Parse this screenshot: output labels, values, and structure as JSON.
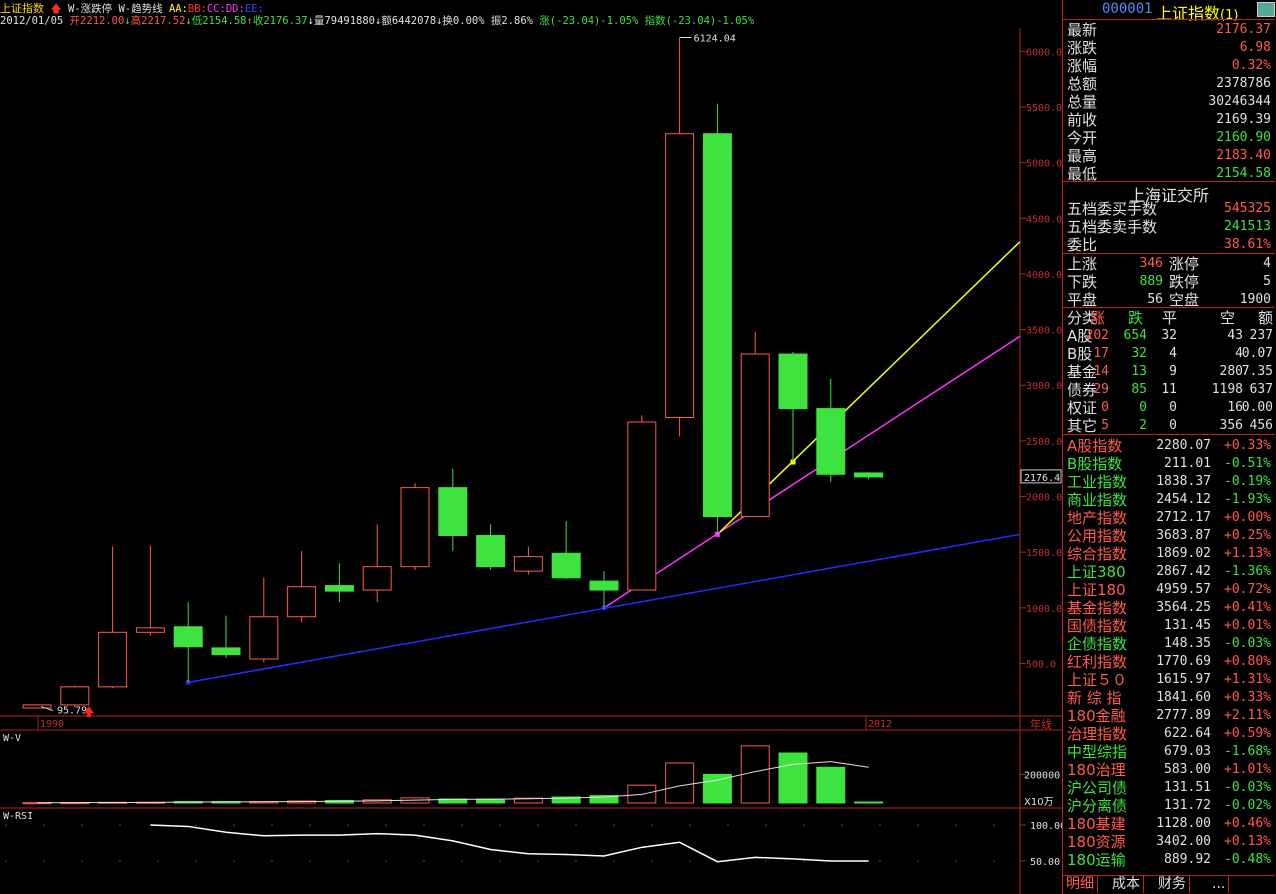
{
  "colors": {
    "up": "#ff5a4f",
    "down": "#3fe33f",
    "white": "#e0e0e0",
    "yellow": "#ffff00",
    "magenta": "#ff33ff",
    "blue": "#2a2aff",
    "axis": "#b22222",
    "label": "#c03030"
  },
  "toolbar": {
    "index_name": "上证指数",
    "ind1": "W-涨跌停",
    "ind2": "W-趋势线",
    "aa": "AA:",
    "bb": "BB:",
    "cc": "CC:",
    "dd": "DD:",
    "ee": "EE:"
  },
  "info": {
    "date": "2012/01/05",
    "open": "开2212.00",
    "high": "高2217.52",
    "low": "低2154.58",
    "close": "收2176.37",
    "vol": "量79491880",
    "amount": "额6442078",
    "turnover": "换0.00%",
    "amplitude": "振2.86%",
    "change": "涨(-23.04)-1.05%",
    "index_chg": "指数(-23.04)-1.05%"
  },
  "chart_data": {
    "type": "candlestick",
    "period": "年线",
    "x_start_label": "1990",
    "x_end_label": "2012",
    "y_ticks": [
      "6000.0",
      "5500.0",
      "5000.0",
      "4500.0",
      "4000.0",
      "3500.0",
      "3000.0",
      "2500.0",
      "2000.0",
      "1500.0",
      "1000.0",
      "500.0"
    ],
    "current_price_label": "2176.4",
    "max_label": "6124.04",
    "min_label": "95.79",
    "candles": [
      {
        "o": 100,
        "h": 128,
        "l": 95,
        "c": 128
      },
      {
        "o": 128,
        "h": 300,
        "l": 110,
        "c": 290
      },
      {
        "o": 290,
        "h": 1550,
        "l": 280,
        "c": 780
      },
      {
        "o": 780,
        "h": 1560,
        "l": 750,
        "c": 820
      },
      {
        "o": 830,
        "h": 1050,
        "l": 330,
        "c": 650
      },
      {
        "o": 640,
        "h": 930,
        "l": 550,
        "c": 580
      },
      {
        "o": 540,
        "h": 1270,
        "l": 510,
        "c": 920
      },
      {
        "o": 920,
        "h": 1510,
        "l": 870,
        "c": 1190
      },
      {
        "o": 1200,
        "h": 1400,
        "l": 1050,
        "c": 1150
      },
      {
        "o": 1160,
        "h": 1750,
        "l": 1050,
        "c": 1370
      },
      {
        "o": 1370,
        "h": 2120,
        "l": 1340,
        "c": 2080
      },
      {
        "o": 2080,
        "h": 2250,
        "l": 1510,
        "c": 1650
      },
      {
        "o": 1650,
        "h": 1750,
        "l": 1340,
        "c": 1370
      },
      {
        "o": 1330,
        "h": 1550,
        "l": 1300,
        "c": 1460
      },
      {
        "o": 1490,
        "h": 1780,
        "l": 1260,
        "c": 1270
      },
      {
        "o": 1240,
        "h": 1330,
        "l": 990,
        "c": 1160
      },
      {
        "o": 1160,
        "h": 2730,
        "l": 1160,
        "c": 2670
      },
      {
        "o": 2710,
        "h": 6124,
        "l": 2540,
        "c": 5260
      },
      {
        "o": 5260,
        "h": 5530,
        "l": 1660,
        "c": 1820
      },
      {
        "o": 1820,
        "h": 3480,
        "l": 1820,
        "c": 3280
      },
      {
        "o": 3280,
        "h": 3300,
        "l": 2310,
        "c": 2790
      },
      {
        "o": 2790,
        "h": 3060,
        "l": 2130,
        "c": 2200
      },
      {
        "o": 2212,
        "h": 2218,
        "l": 2155,
        "c": 2176
      }
    ],
    "volume_label": "W-V",
    "volume_tick": "200000",
    "volume_unit": "X10万",
    "volume": [
      2000,
      2500,
      5000,
      5000,
      10000,
      10000,
      10000,
      14000,
      18000,
      22000,
      36000,
      28000,
      28000,
      34000,
      42000,
      52000,
      125000,
      280000,
      200000,
      400000,
      350000,
      250000,
      7000
    ],
    "rsi_label": "W-RSI",
    "rsi_ticks": [
      "100.00",
      "50.00"
    ],
    "rsi": [
      null,
      null,
      null,
      100,
      98,
      90,
      85,
      86,
      86,
      88,
      86,
      78,
      66,
      60,
      59,
      57,
      69,
      76,
      49,
      55,
      53,
      50,
      50
    ]
  },
  "quote": {
    "code": "000001",
    "name": "上证指数",
    "suffix": "(1)",
    "rows": [
      {
        "label": "最新",
        "value": "2176.37",
        "color": "up"
      },
      {
        "label": "涨跌",
        "value": "6.98",
        "color": "up"
      },
      {
        "label": "涨幅",
        "value": "0.32%",
        "color": "up"
      },
      {
        "label": "总额",
        "value": "2378786",
        "color": "white"
      },
      {
        "label": "总量",
        "value": "30246344",
        "color": "white"
      },
      {
        "label": "前收",
        "value": "2169.39",
        "color": "white"
      },
      {
        "label": "今开",
        "value": "2160.90",
        "color": "down"
      },
      {
        "label": "最高",
        "value": "2183.40",
        "color": "up"
      },
      {
        "label": "最低",
        "value": "2154.58",
        "color": "down"
      }
    ],
    "exchange": "上海证交所",
    "order_rows": [
      {
        "label": "五档委买手数",
        "value": "545325",
        "color": "up"
      },
      {
        "label": "五档委卖手数",
        "value": "241513",
        "color": "down"
      },
      {
        "label": "委比",
        "value": "38.61%",
        "color": "up"
      }
    ],
    "breadth": [
      {
        "l1": "上涨",
        "v1": "346",
        "c1": "up",
        "l2": "涨停",
        "v2": "4",
        "c2": "white"
      },
      {
        "l1": "下跌",
        "v1": "889",
        "c1": "down",
        "l2": "跌停",
        "v2": "5",
        "c2": "white"
      },
      {
        "l1": "平盘",
        "v1": "56",
        "c1": "white",
        "l2": "空盘",
        "v2": "1900",
        "c2": "white"
      }
    ],
    "class_header": [
      "分类",
      "涨",
      "跌",
      "平",
      "空",
      "额"
    ],
    "classes": [
      {
        "n": "A股",
        "u": "202",
        "d": "654",
        "f": "32",
        "e": "43",
        "a": "237"
      },
      {
        "n": "B股",
        "u": "17",
        "d": "32",
        "f": "4",
        "e": "4",
        "a": "0.07"
      },
      {
        "n": "基金",
        "u": "14",
        "d": "13",
        "f": "9",
        "e": "280",
        "a": "7.35"
      },
      {
        "n": "债券",
        "u": "29",
        "d": "85",
        "f": "11",
        "e": "1198",
        "a": "637"
      },
      {
        "n": "权证",
        "u": "0",
        "d": "0",
        "f": "0",
        "e": "16",
        "a": "0.00"
      },
      {
        "n": "其它",
        "u": "5",
        "d": "2",
        "f": "0",
        "e": "356",
        "a": "456"
      }
    ],
    "indices": [
      {
        "n": "A股指数",
        "p": "2280.07",
        "c": "+0.33%",
        "col": "up"
      },
      {
        "n": "B股指数",
        "p": "211.01",
        "c": "-0.51%",
        "col": "down"
      },
      {
        "n": "工业指数",
        "p": "1838.37",
        "c": "-0.19%",
        "col": "down"
      },
      {
        "n": "商业指数",
        "p": "2454.12",
        "c": "-1.93%",
        "col": "down"
      },
      {
        "n": "地产指数",
        "p": "2712.17",
        "c": "+0.00%",
        "col": "up"
      },
      {
        "n": "公用指数",
        "p": "3683.87",
        "c": "+0.25%",
        "col": "up"
      },
      {
        "n": "综合指数",
        "p": "1869.02",
        "c": "+1.13%",
        "col": "up"
      },
      {
        "n": "上证380",
        "p": "2867.42",
        "c": "-1.36%",
        "col": "down"
      },
      {
        "n": "上证180",
        "p": "4959.57",
        "c": "+0.72%",
        "col": "up"
      },
      {
        "n": "基金指数",
        "p": "3564.25",
        "c": "+0.41%",
        "col": "up"
      },
      {
        "n": "国债指数",
        "p": "131.45",
        "c": "+0.01%",
        "col": "up"
      },
      {
        "n": "企债指数",
        "p": "148.35",
        "c": "-0.03%",
        "col": "down"
      },
      {
        "n": "红利指数",
        "p": "1770.69",
        "c": "+0.80%",
        "col": "up"
      },
      {
        "n": "上证５０",
        "p": "1615.97",
        "c": "+1.31%",
        "col": "up"
      },
      {
        "n": "新 综 指",
        "p": "1841.60",
        "c": "+0.33%",
        "col": "up"
      },
      {
        "n": "180金融",
        "p": "2777.89",
        "c": "+2.11%",
        "col": "up"
      },
      {
        "n": "治理指数",
        "p": "622.64",
        "c": "+0.59%",
        "col": "up"
      },
      {
        "n": "中型综指",
        "p": "679.03",
        "c": "-1.68%",
        "col": "down"
      },
      {
        "n": "180治理",
        "p": "583.00",
        "c": "+1.01%",
        "col": "up"
      },
      {
        "n": "沪公司债",
        "p": "131.51",
        "c": "-0.03%",
        "col": "down"
      },
      {
        "n": "沪分离债",
        "p": "131.72",
        "c": "-0.02%",
        "col": "down"
      },
      {
        "n": "180基建",
        "p": "1128.00",
        "c": "+0.46%",
        "col": "up"
      },
      {
        "n": "180资源",
        "p": "3402.00",
        "c": "+0.13%",
        "col": "up"
      },
      {
        "n": "180运输",
        "p": "889.92",
        "c": "-0.48%",
        "col": "down"
      }
    ],
    "tabs": [
      "明细",
      "成本",
      "财务",
      "..."
    ]
  }
}
